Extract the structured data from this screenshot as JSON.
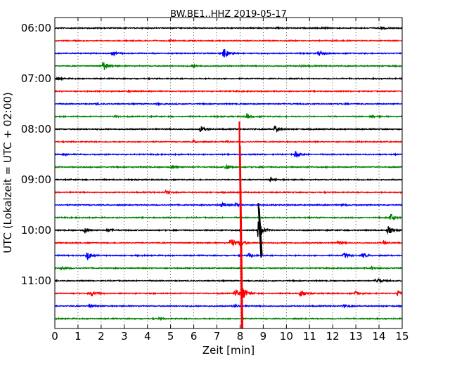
{
  "chart_data": {
    "type": "line",
    "title": "BW.BE1..HHZ 2019-05-17",
    "xlabel": "Zeit  [min]",
    "ylabel": "UTC (Lokalzeit = UTC + 02:00)",
    "xlim": [
      0,
      15
    ],
    "x_ticks": [
      "0",
      "1",
      "2",
      "3",
      "4",
      "5",
      "6",
      "7",
      "8",
      "9",
      "10",
      "11",
      "12",
      "13",
      "14",
      "15"
    ],
    "y_tick_labels": [
      "06:00",
      "07:00",
      "08:00",
      "09:00",
      "10:00",
      "11:00"
    ],
    "traces_per_hour": 4,
    "trace_start_times": [
      "06:00",
      "06:15",
      "06:30",
      "06:45",
      "07:00",
      "07:15",
      "07:30",
      "07:45",
      "08:00",
      "08:15",
      "08:30",
      "08:45",
      "09:00",
      "09:15",
      "09:30",
      "09:45",
      "10:00",
      "10:15",
      "10:30",
      "10:45",
      "11:00",
      "11:15",
      "11:30",
      "11:45"
    ],
    "colors": [
      "#000000",
      "#ff0000",
      "#0000ff",
      "#008000"
    ],
    "grid": "vertical dotted lines at each minute",
    "events": [
      {
        "trace": 0,
        "t": 9.6,
        "amp": 0.2
      },
      {
        "trace": 0,
        "t": 11.5,
        "amp": 0.15
      },
      {
        "trace": 0,
        "t": 14.1,
        "amp": 0.25
      },
      {
        "trace": 1,
        "t": 5.0,
        "amp": 0.1
      },
      {
        "trace": 1,
        "t": 12.0,
        "amp": 0.1
      },
      {
        "trace": 2,
        "t": 2.5,
        "amp": 0.35
      },
      {
        "trace": 2,
        "t": 7.3,
        "amp": 0.9
      },
      {
        "trace": 2,
        "t": 11.4,
        "amp": 0.5
      },
      {
        "trace": 3,
        "t": 2.1,
        "amp": 0.9
      },
      {
        "trace": 3,
        "t": 5.9,
        "amp": 0.3
      },
      {
        "trace": 3,
        "t": 10.6,
        "amp": 0.15
      },
      {
        "trace": 4,
        "t": 0.1,
        "amp": 0.2
      },
      {
        "trace": 5,
        "t": 3.2,
        "amp": 0.15
      },
      {
        "trace": 6,
        "t": 1.8,
        "amp": 0.1
      },
      {
        "trace": 6,
        "t": 4.4,
        "amp": 0.1
      },
      {
        "trace": 7,
        "t": 2.6,
        "amp": 0.15
      },
      {
        "trace": 7,
        "t": 8.3,
        "amp": 0.45
      },
      {
        "trace": 7,
        "t": 13.7,
        "amp": 0.15
      },
      {
        "trace": 8,
        "t": 6.3,
        "amp": 0.55
      },
      {
        "trace": 8,
        "t": 9.5,
        "amp": 0.6
      },
      {
        "trace": 9,
        "t": 6.0,
        "amp": 0.2
      },
      {
        "trace": 9,
        "t": 7.4,
        "amp": 0.15
      },
      {
        "trace": 10,
        "t": 0.4,
        "amp": 0.15
      },
      {
        "trace": 10,
        "t": 10.4,
        "amp": 0.5
      },
      {
        "trace": 11,
        "t": 5.1,
        "amp": 0.35
      },
      {
        "trace": 11,
        "t": 7.4,
        "amp": 0.55
      },
      {
        "trace": 12,
        "t": 9.3,
        "amp": 0.35
      },
      {
        "trace": 13,
        "t": 4.8,
        "amp": 0.25
      },
      {
        "trace": 14,
        "t": 7.2,
        "amp": 0.4
      },
      {
        "trace": 14,
        "t": 7.8,
        "amp": 0.3
      },
      {
        "trace": 14,
        "t": 12.4,
        "amp": 0.15
      },
      {
        "trace": 15,
        "t": 14.5,
        "amp": 0.75
      },
      {
        "trace": 16,
        "t": 1.3,
        "amp": 0.4
      },
      {
        "trace": 16,
        "t": 2.3,
        "amp": 0.3
      },
      {
        "trace": 16,
        "t": 8.8,
        "amp": 1.8
      },
      {
        "trace": 16,
        "t": 14.4,
        "amp": 0.7
      },
      {
        "trace": 17,
        "t": 7.6,
        "amp": 1.0
      },
      {
        "trace": 17,
        "t": 8.0,
        "amp": 0.6
      },
      {
        "trace": 17,
        "t": 12.2,
        "amp": 0.35
      },
      {
        "trace": 17,
        "t": 14.2,
        "amp": 0.3
      },
      {
        "trace": 18,
        "t": 1.4,
        "amp": 0.85
      },
      {
        "trace": 18,
        "t": 8.4,
        "amp": 0.35
      },
      {
        "trace": 18,
        "t": 12.5,
        "amp": 0.45
      },
      {
        "trace": 18,
        "t": 13.3,
        "amp": 0.4
      },
      {
        "trace": 19,
        "t": 0.3,
        "amp": 0.35
      },
      {
        "trace": 19,
        "t": 13.7,
        "amp": 0.3
      },
      {
        "trace": 20,
        "t": 13.9,
        "amp": 0.6
      },
      {
        "trace": 21,
        "t": 1.6,
        "amp": 0.5
      },
      {
        "trace": 21,
        "t": 7.8,
        "amp": 0.8
      },
      {
        "trace": 21,
        "t": 8.1,
        "amp": 1.3
      },
      {
        "trace": 21,
        "t": 10.6,
        "amp": 0.55
      },
      {
        "trace": 21,
        "t": 13.0,
        "amp": 0.35
      },
      {
        "trace": 21,
        "t": 14.8,
        "amp": 0.45
      },
      {
        "trace": 22,
        "t": 1.5,
        "amp": 0.3
      },
      {
        "trace": 22,
        "t": 7.8,
        "amp": 0.25
      },
      {
        "trace": 22,
        "t": 12.5,
        "amp": 0.25
      },
      {
        "trace": 23,
        "t": 4.5,
        "amp": 0.1
      }
    ],
    "spikes": [
      {
        "trace": 16,
        "t": 8.85,
        "amp": 1.8
      },
      {
        "trace": 17,
        "t": 8.03,
        "amp": 8.0
      }
    ]
  }
}
